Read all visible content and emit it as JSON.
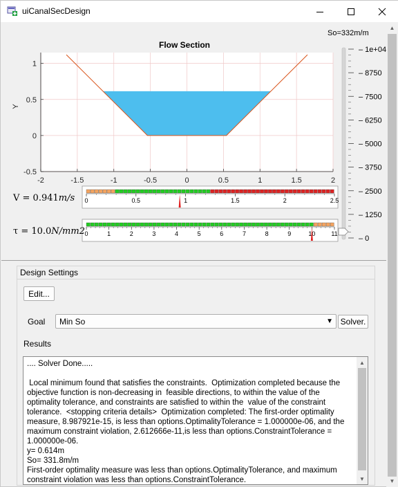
{
  "window": {
    "title": "uiCanalSecDesign",
    "icon": "matlab-app-icon",
    "controls": [
      "minimize-icon",
      "maximize-icon",
      "close-icon"
    ]
  },
  "slider": {
    "label": "So=332m/m",
    "ticks": [
      "1e+04",
      "8750",
      "7500",
      "6250",
      "5000",
      "3750",
      "2500",
      "1250",
      "0"
    ],
    "value": 332,
    "min": 0,
    "max": 10000
  },
  "chart_data": [
    {
      "type": "area",
      "title": "Flow Section",
      "xlabel": "",
      "ylabel": "Y",
      "xlim": [
        -2,
        2
      ],
      "ylim": [
        -0.5,
        1.15
      ],
      "xticks": [
        "-2",
        "-1.5",
        "-1",
        "-0.5",
        "0",
        "0.5",
        "1",
        "1.5",
        "2"
      ],
      "yticks": [
        "-0.5",
        "0",
        "0.5",
        "1"
      ],
      "grid": true,
      "series": [
        {
          "type": "line",
          "color": "#d95319",
          "x": [
            -1.65,
            -0.54,
            0.54,
            1.65
          ],
          "y": [
            1.12,
            0,
            0,
            1.12
          ]
        },
        {
          "type": "fill",
          "color": "#4dbeee",
          "x": [
            -1.15,
            -0.54,
            0.54,
            1.15
          ],
          "y": [
            0.614,
            0,
            0,
            0.614
          ]
        }
      ]
    },
    {
      "type": "gauge",
      "label": "V = 0.941m/s",
      "label_parts": {
        "prefix": "V = 0.941",
        "unit": "m/s"
      },
      "min": 0,
      "max": 2.5,
      "tick_labels": [
        "0",
        "0.5",
        "1",
        "1.5",
        "2",
        "2.5"
      ],
      "bands": [
        {
          "from": 0,
          "to": 0.3,
          "color": "#f4a460"
        },
        {
          "from": 0.3,
          "to": 1.25,
          "color": "#22cc22"
        },
        {
          "from": 1.25,
          "to": 2.5,
          "color": "#dd2222"
        }
      ],
      "value": 0.941
    },
    {
      "type": "gauge",
      "label": "τ = 10.0N/mm2",
      "label_parts": {
        "prefix": "τ = 10.0",
        "unit": "N/mm2"
      },
      "min": 0,
      "max": 11,
      "tick_labels": [
        "0",
        "1",
        "2",
        "3",
        "4",
        "5",
        "6",
        "7",
        "8",
        "9",
        "10",
        "11"
      ],
      "bands": [
        {
          "from": 0,
          "to": 10,
          "color": "#22cc22"
        },
        {
          "from": 10,
          "to": 11,
          "color": "#f4a460"
        }
      ],
      "value": 10.0
    }
  ],
  "design": {
    "panel_title": "Design Settings",
    "edit_button": "Edit...",
    "goal_label": "Goal",
    "goal_value": "Min So",
    "solver_button": "Solver.",
    "results_label": "Results",
    "results_text": ".... Solver Done.....\n\n Local minimum found that satisfies the constraints.  Optimization completed because the objective function is non-decreasing in  feasible directions, to within the value of the optimality tolerance, and constraints are satisfied to within the  value of the constraint tolerance.  <stopping criteria details>  Optimization completed: The first-order optimality measure, 8.987921e-15, is less than options.OptimalityTolerance = 1.000000e-06, and the maximum constraint violation, 2.612666e-11,is less than options.ConstraintTolerance = 1.000000e-06.\ny= 0.614m\nSo= 331.8m/m\nFirst-order optimality measure was less than options.OptimalityTolerance, and maximum constraint violation was less than options.ConstraintTolerance."
  },
  "colors": {
    "channel_line": "#d95319",
    "water": "#4dbeee",
    "grid": "#f0c8c8"
  }
}
